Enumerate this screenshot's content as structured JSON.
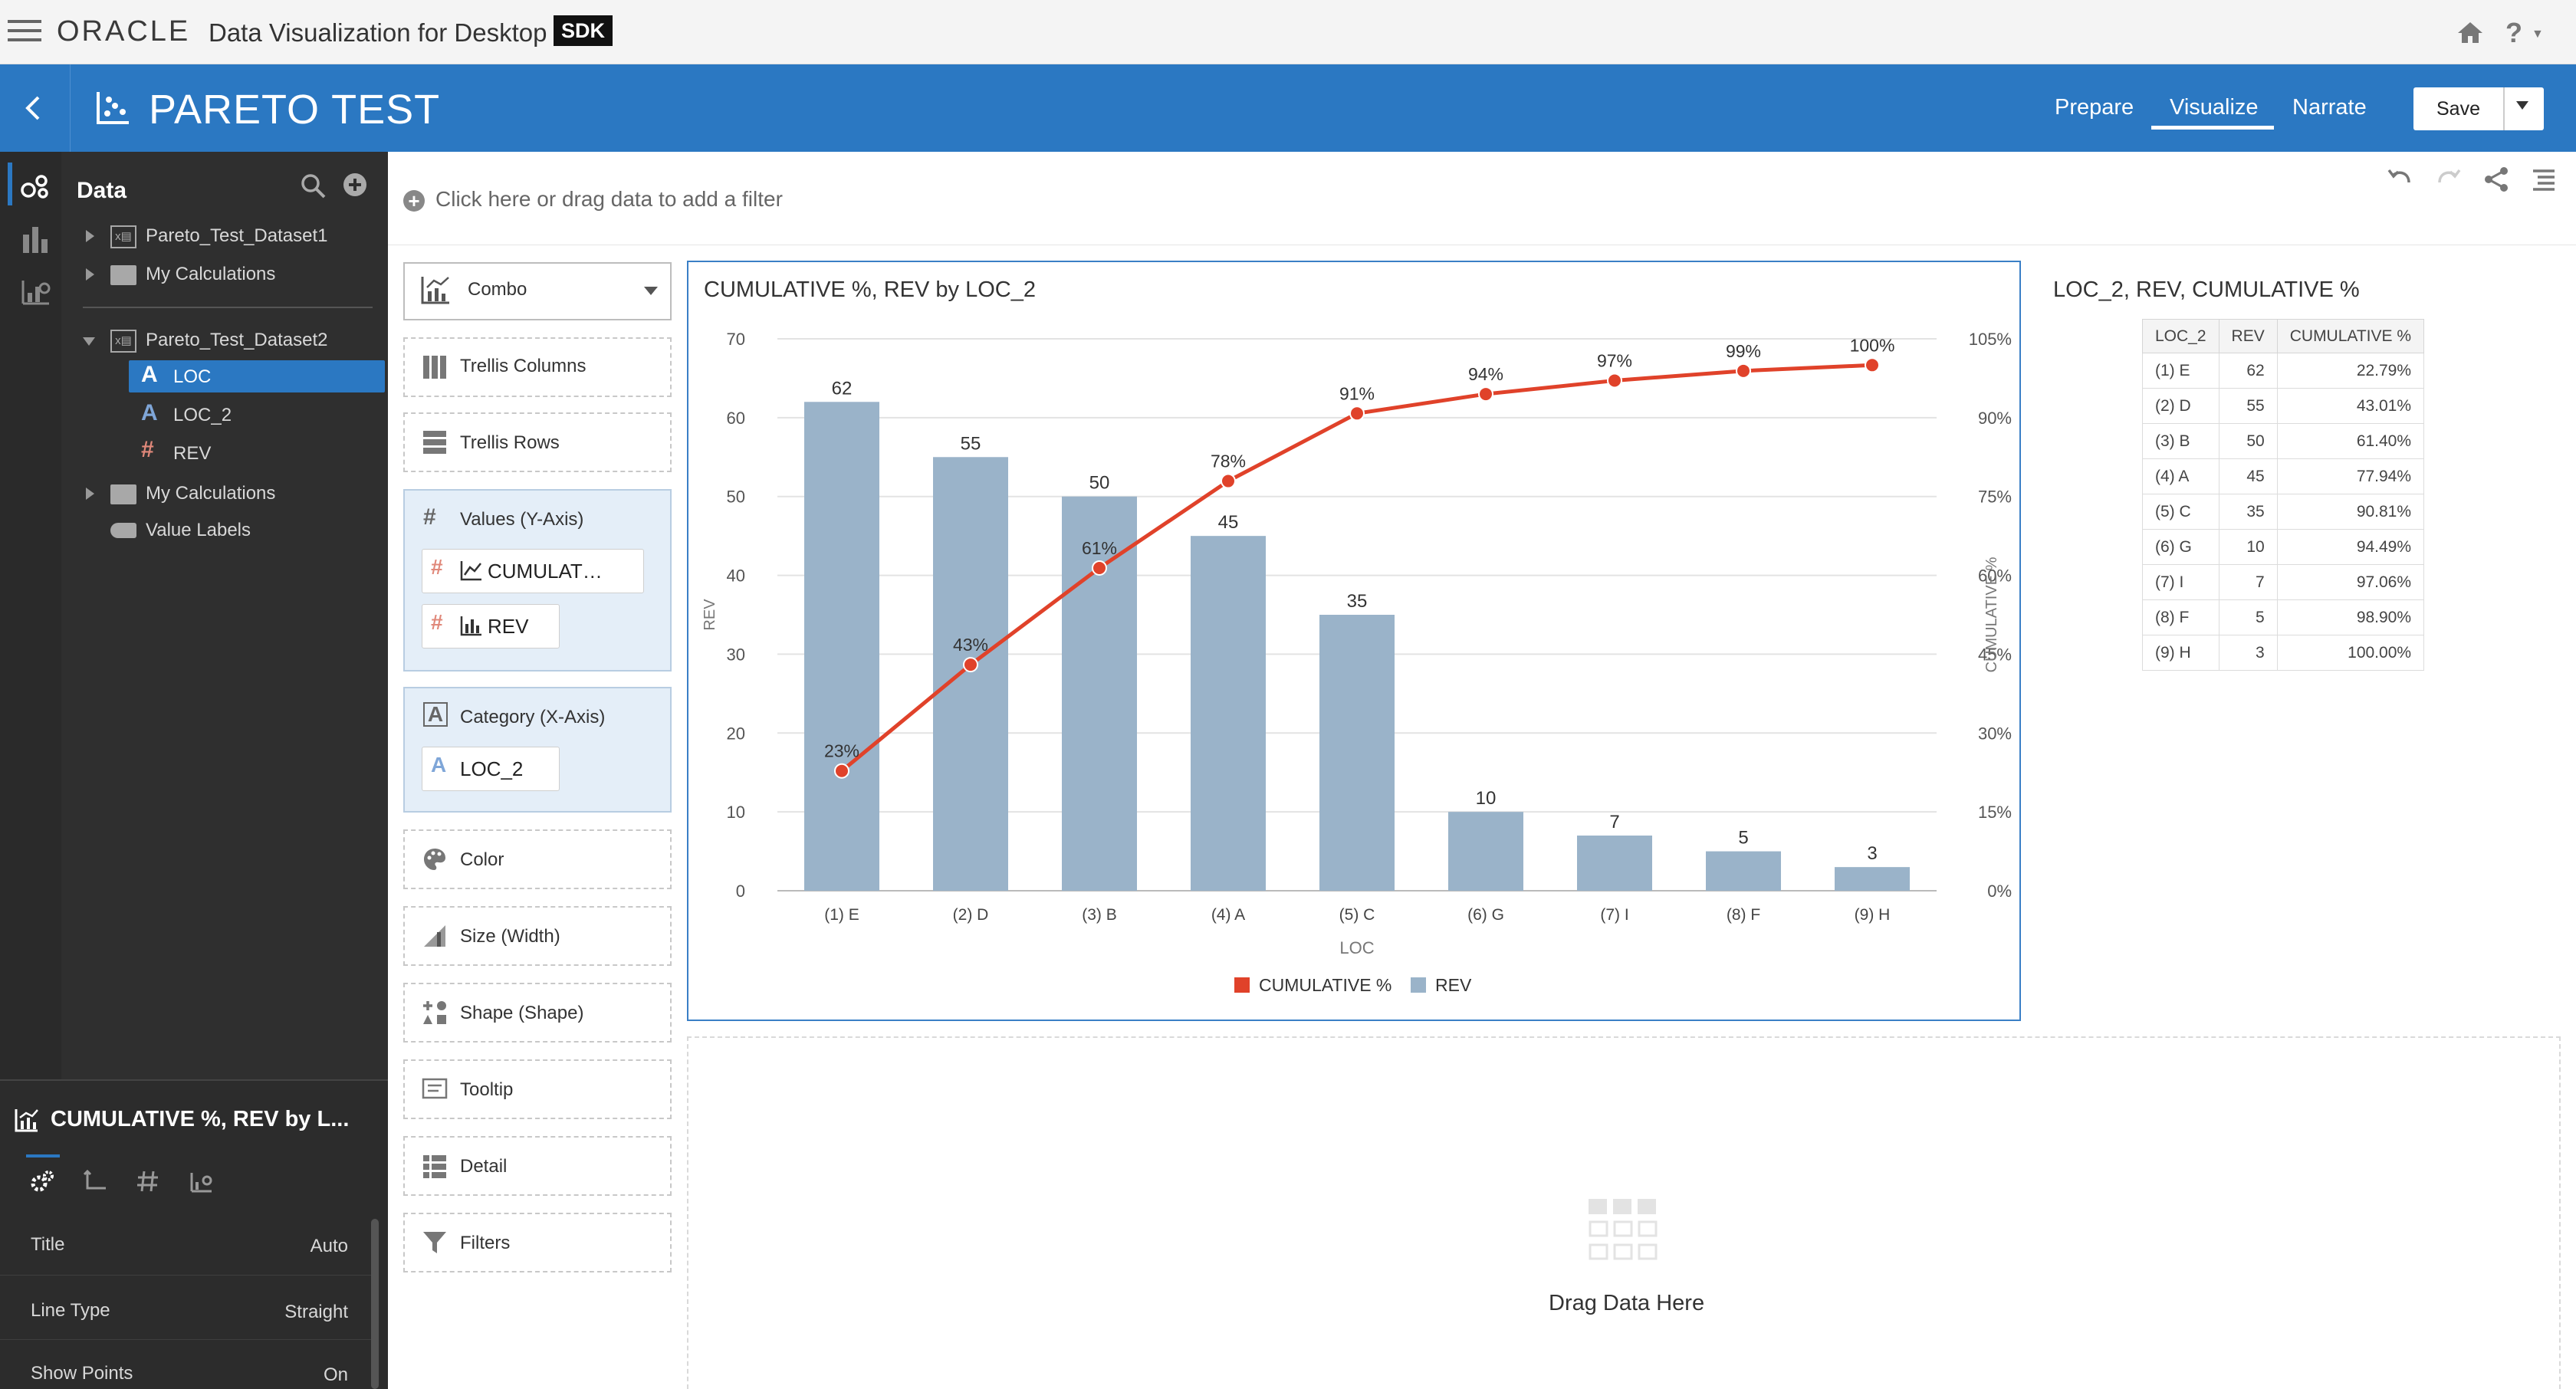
{
  "app": {
    "logo_text": "ORACLE",
    "product_name": "Data Visualization for Desktop",
    "badge": "SDK"
  },
  "project": {
    "title": "PARETO TEST",
    "nav": [
      "Prepare",
      "Visualize",
      "Narrate"
    ],
    "active_nav": "Visualize",
    "save_label": "Save"
  },
  "data_panel": {
    "title": "Data",
    "items": [
      {
        "label": "Pareto_Test_Dataset1",
        "type": "dataset",
        "expanded": false
      },
      {
        "label": "My Calculations",
        "type": "folder",
        "expanded": false
      },
      {
        "label": "Pareto_Test_Dataset2",
        "type": "dataset",
        "expanded": true
      },
      {
        "label": "LOC",
        "type": "attribute",
        "selected": true
      },
      {
        "label": "LOC_2",
        "type": "attribute"
      },
      {
        "label": "REV",
        "type": "measure"
      },
      {
        "label": "My Calculations",
        "type": "folder",
        "expanded": false
      },
      {
        "label": "Value Labels",
        "type": "tag"
      }
    ]
  },
  "properties": {
    "title": "CUMULATIVE %, REV by L...",
    "rows": [
      {
        "label": "Title",
        "value": "Auto"
      },
      {
        "label": "Line Type",
        "value": "Straight"
      },
      {
        "label": "Show Points",
        "value": "On"
      }
    ]
  },
  "filter_bar": {
    "hint": "Click here or drag data to add a filter"
  },
  "grammar": {
    "chart_type": "Combo",
    "trellis_columns": "Trellis Columns",
    "trellis_rows": "Trellis Rows",
    "values_label": "Values (Y-Axis)",
    "values_pills": [
      "CUMULAT…",
      "REV"
    ],
    "category_label": "Category (X-Axis)",
    "category_pills": [
      "LOC_2"
    ],
    "color": "Color",
    "size": "Size (Width)",
    "shape": "Shape (Shape)",
    "tooltip": "Tooltip",
    "detail": "Detail",
    "filters": "Filters"
  },
  "chart_data": {
    "type": "bar",
    "title": "CUMULATIVE %, REV by LOC_2",
    "categories": [
      "(1) E",
      "(2) D",
      "(3) B",
      "(4) A",
      "(5) C",
      "(6) G",
      "(7) I",
      "(8) F",
      "(9) H"
    ],
    "series": [
      {
        "name": "REV",
        "kind": "bar",
        "axis": "left",
        "color": "#9ab3c9",
        "values": [
          62,
          55,
          50,
          45,
          35,
          10,
          7,
          5,
          3
        ]
      },
      {
        "name": "CUMULATIVE %",
        "kind": "line",
        "axis": "right",
        "color": "#e0422a",
        "values": [
          22.79,
          43.01,
          61.4,
          77.94,
          90.81,
          94.49,
          97.06,
          98.9,
          100.0
        ]
      }
    ],
    "line_labels": [
      "23%",
      "43%",
      "61%",
      "78%",
      "91%",
      "94%",
      "97%",
      "99%",
      "100%"
    ],
    "xlabel": "LOC",
    "ylabel": "REV",
    "y2label": "CUMULATIVE %",
    "ylim": [
      0,
      70
    ],
    "y_ticks": [
      "0",
      "10",
      "20",
      "30",
      "40",
      "50",
      "60",
      "70"
    ],
    "y2lim": [
      0,
      105
    ],
    "y2_ticks": [
      "0%",
      "15%",
      "30%",
      "45%",
      "60%",
      "75%",
      "90%",
      "105%"
    ],
    "legend": [
      "CUMULATIVE %",
      "REV"
    ],
    "legend_position": "bottom",
    "grid": true
  },
  "table_viz": {
    "title": "LOC_2, REV, CUMULATIVE %",
    "headers": [
      "LOC_2",
      "REV",
      "CUMULATIVE %"
    ],
    "rows": [
      [
        "(1) E",
        "62",
        "22.79%"
      ],
      [
        "(2) D",
        "55",
        "43.01%"
      ],
      [
        "(3) B",
        "50",
        "61.40%"
      ],
      [
        "(4) A",
        "45",
        "77.94%"
      ],
      [
        "(5) C",
        "35",
        "90.81%"
      ],
      [
        "(6) G",
        "10",
        "94.49%"
      ],
      [
        "(7) I",
        "7",
        "97.06%"
      ],
      [
        "(8) F",
        "5",
        "98.90%"
      ],
      [
        "(9) H",
        "3",
        "100.00%"
      ]
    ]
  },
  "drop_area": {
    "text": "Drag Data Here"
  }
}
